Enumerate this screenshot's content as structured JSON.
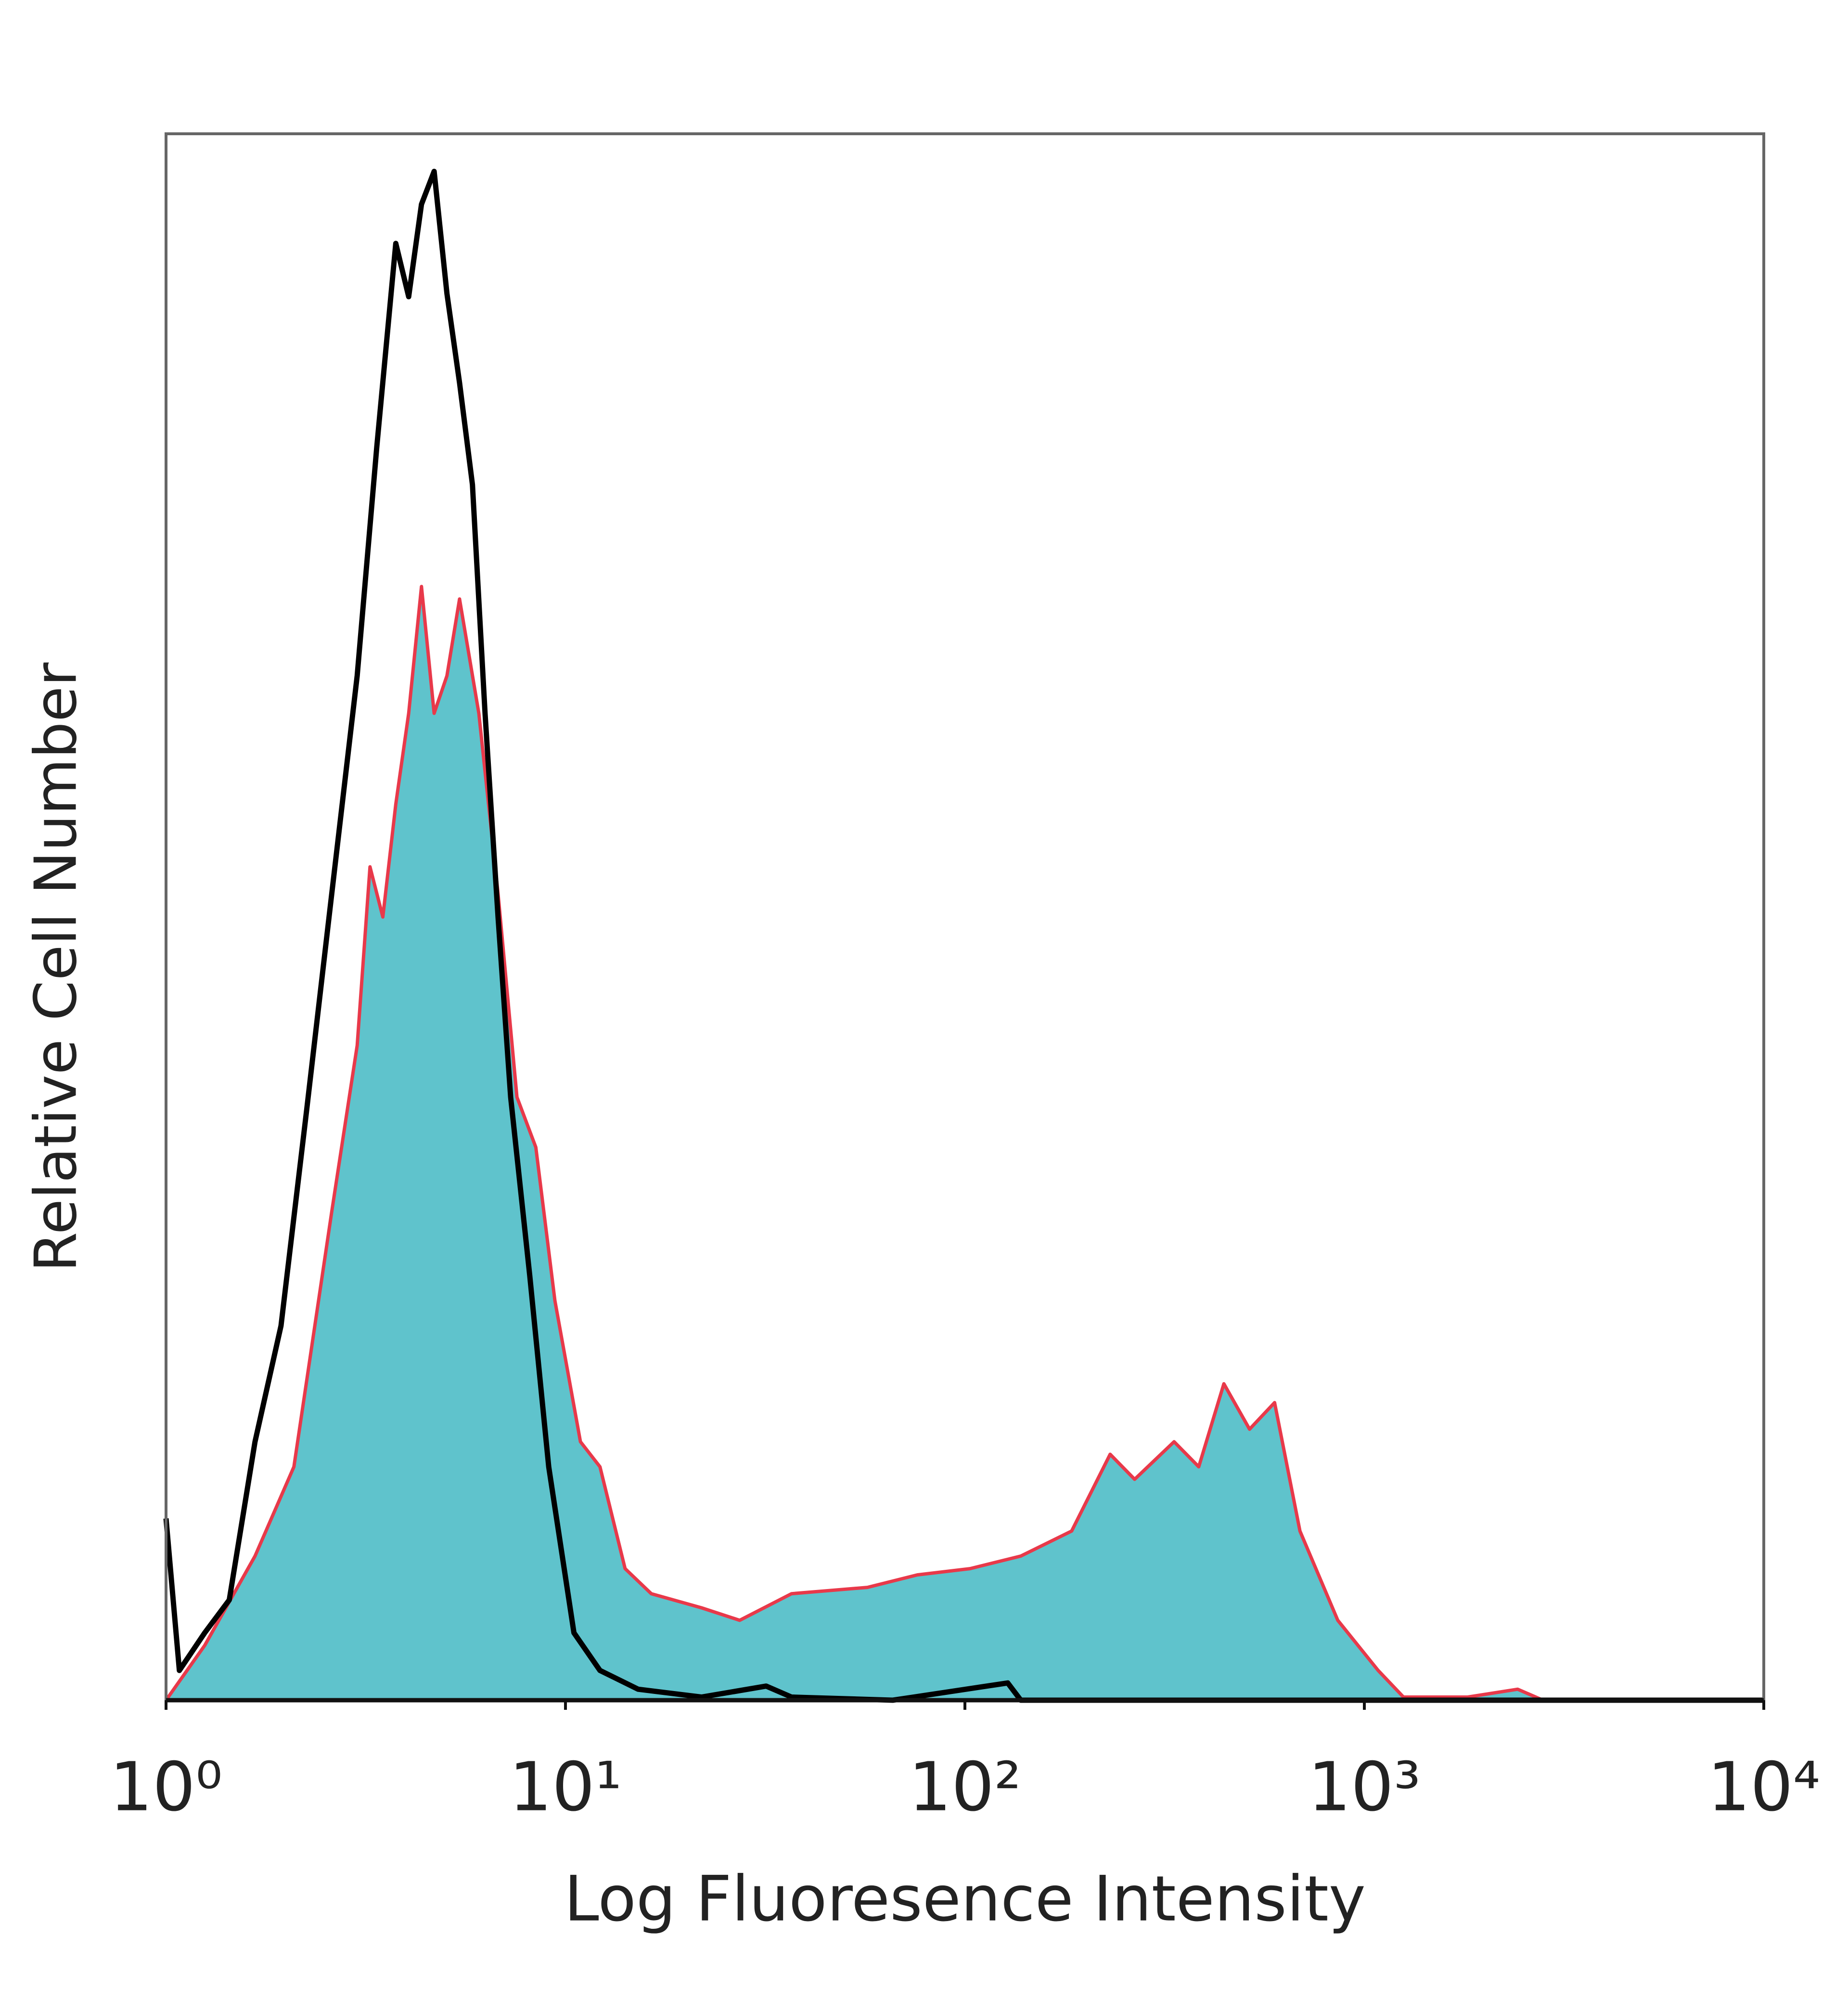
{
  "chart_data": {
    "type": "histogram-overlay",
    "xlabel": "Log Fluoresence Intensity",
    "ylabel": "Relative Cell Number",
    "xscale": "log",
    "xlim": [
      1,
      10000
    ],
    "xticks": [
      {
        "value": 1,
        "label": "10⁰"
      },
      {
        "value": 10,
        "label": "10¹"
      },
      {
        "value": 100,
        "label": "10²"
      },
      {
        "value": 1000,
        "label": "10³"
      },
      {
        "value": 10000,
        "label": "10⁴"
      }
    ],
    "ylim": [
      0,
      100
    ],
    "series": [
      {
        "color": "#5fc3cc",
        "edgecolor": "#e8394a",
        "filled": true,
        "x": [
          1,
          1.25,
          1.67,
          2.09,
          2.6,
          3.01,
          3.24,
          3.49,
          3.76,
          4.05,
          4.36,
          4.69,
          5.05,
          5.43,
          6.07,
          6.78,
          7.56,
          8.43,
          9.41,
          10.9,
          12.2,
          14.1,
          16.4,
          21.9,
          27.3,
          36.8,
          57,
          76,
          103,
          138,
          185,
          231,
          266,
          334,
          385,
          445,
          516,
          596,
          690,
          858,
          1083,
          1253,
          1814,
          2420,
          2800,
          10000
        ],
        "values": [
          0,
          3.5,
          9.2,
          14.9,
          31.2,
          41.8,
          53.2,
          50,
          57.2,
          63,
          71.1,
          63,
          65.4,
          70.3,
          63,
          51.5,
          38.5,
          35.3,
          25.5,
          16.5,
          14.9,
          8.4,
          6.8,
          5.9,
          5.1,
          6.8,
          7.2,
          8,
          8.4,
          9.2,
          10.8,
          15.7,
          14.1,
          16.5,
          14.9,
          20.2,
          17.3,
          19,
          10.8,
          5.1,
          1.9,
          0.2,
          0.2,
          0.7,
          0,
          0
        ]
      },
      {
        "color": "#000000",
        "filled": false,
        "x": [
          1,
          1.08,
          1.25,
          1.44,
          1.67,
          1.94,
          2.25,
          2.6,
          3.01,
          3.37,
          3.76,
          4.05,
          4.36,
          4.69,
          5.05,
          5.43,
          5.85,
          6.29,
          6.78,
          7.29,
          8.14,
          9.08,
          10.5,
          12.2,
          15.2,
          21.9,
          31.8,
          36.8,
          66,
          128,
          138,
          10000
        ],
        "values": [
          11.6,
          1.9,
          4.3,
          6.4,
          16.5,
          23.9,
          37.7,
          51.5,
          65.4,
          80,
          93,
          89.6,
          95.5,
          97.6,
          89.8,
          84.1,
          77.6,
          63,
          50,
          38.5,
          27.1,
          14.9,
          4.3,
          1.9,
          0.7,
          0.2,
          0.9,
          0.2,
          0,
          1.1,
          0,
          0
        ]
      }
    ]
  }
}
